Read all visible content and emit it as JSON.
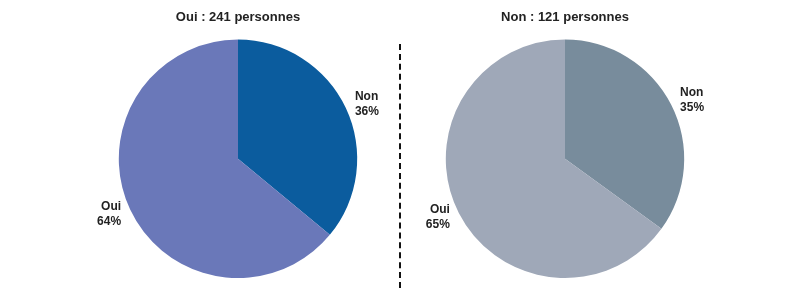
{
  "chart_data": [
    {
      "type": "pie",
      "title": "Oui : 241 personnes",
      "categories": [
        "Non",
        "Oui"
      ],
      "values": [
        36,
        64
      ],
      "value_labels": [
        "36%",
        "64%"
      ],
      "colors": [
        "#0b5c9e",
        "#6a78b9"
      ],
      "data_labels": true
    },
    {
      "type": "pie",
      "title": "Non : 121 personnes",
      "categories": [
        "Non",
        "Oui"
      ],
      "values": [
        35,
        65
      ],
      "value_labels": [
        "35%",
        "65%"
      ],
      "colors": [
        "#788c9c",
        "#9fa8b8"
      ],
      "data_labels": true
    }
  ]
}
